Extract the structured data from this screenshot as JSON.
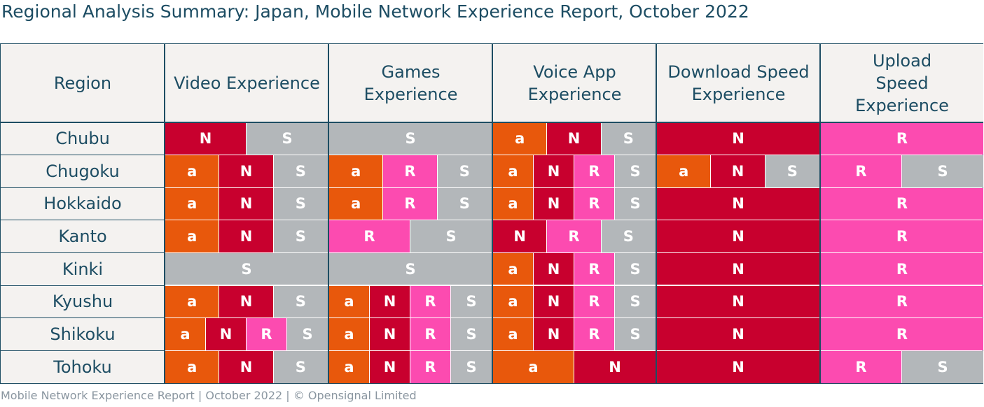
{
  "title": "Regional Analysis Summary: Japan, Mobile Network Experience Report, October 2022",
  "footer": "Mobile Network Experience Report | October 2022 | © Opensignal Limited",
  "colors": {
    "a": "#e8580c",
    "N": "#c8002e",
    "R": "#fc4bb0",
    "S": "#b3b7ba"
  },
  "chart_data": {
    "type": "table",
    "title": "Regional Analysis Summary: Japan, Mobile Network Experience Report, October 2022",
    "columns": [
      "Region",
      "Video Experience",
      "Games Experience",
      "Voice App Experience",
      "Download Speed Experience",
      "Upload Speed Experience"
    ],
    "rows": [
      {
        "region": "Chubu",
        "cells": [
          [
            "N",
            "S"
          ],
          [
            "S"
          ],
          [
            "a",
            "N",
            "S"
          ],
          [
            "N"
          ],
          [
            "R"
          ]
        ]
      },
      {
        "region": "Chugoku",
        "cells": [
          [
            "a",
            "N",
            "S"
          ],
          [
            "a",
            "R",
            "S"
          ],
          [
            "a",
            "N",
            "R",
            "S"
          ],
          [
            "a",
            "N",
            "S"
          ],
          [
            "R",
            "S"
          ]
        ]
      },
      {
        "region": "Hokkaido",
        "cells": [
          [
            "a",
            "N",
            "S"
          ],
          [
            "a",
            "R",
            "S"
          ],
          [
            "a",
            "N",
            "R",
            "S"
          ],
          [
            "N"
          ],
          [
            "R"
          ]
        ]
      },
      {
        "region": "Kanto",
        "cells": [
          [
            "a",
            "N",
            "S"
          ],
          [
            "R",
            "S"
          ],
          [
            "N",
            "R",
            "S"
          ],
          [
            "N"
          ],
          [
            "R"
          ]
        ]
      },
      {
        "region": "Kinki",
        "cells": [
          [
            "S"
          ],
          [
            "S"
          ],
          [
            "a",
            "N",
            "R",
            "S"
          ],
          [
            "N"
          ],
          [
            "R"
          ]
        ]
      },
      {
        "region": "Kyushu",
        "cells": [
          [
            "a",
            "N",
            "S"
          ],
          [
            "a",
            "N",
            "R",
            "S"
          ],
          [
            "a",
            "N",
            "R",
            "S"
          ],
          [
            "N"
          ],
          [
            "R"
          ]
        ]
      },
      {
        "region": "Shikoku",
        "cells": [
          [
            "a",
            "N",
            "R",
            "S"
          ],
          [
            "a",
            "N",
            "R",
            "S"
          ],
          [
            "a",
            "N",
            "R",
            "S"
          ],
          [
            "N"
          ],
          [
            "R"
          ]
        ]
      },
      {
        "region": "Tohoku",
        "cells": [
          [
            "a",
            "N",
            "S"
          ],
          [
            "a",
            "N",
            "R",
            "S"
          ],
          [
            "a",
            "N"
          ],
          [
            "N"
          ],
          [
            "R",
            "S"
          ]
        ]
      }
    ]
  }
}
